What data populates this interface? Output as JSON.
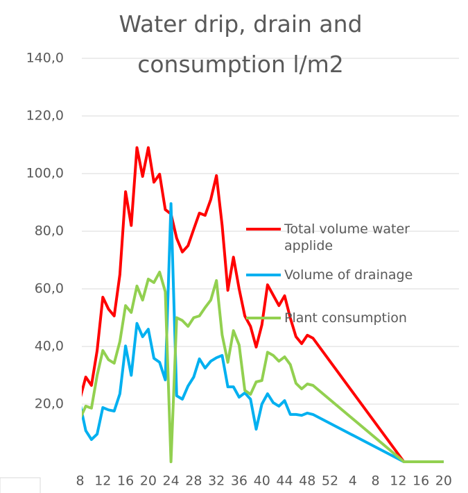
{
  "chart_data": {
    "type": "line",
    "title": "Water drip, drain and consumption l/m2",
    "x": [
      8,
      9,
      10,
      11,
      12,
      13,
      14,
      15,
      16,
      17,
      18,
      19,
      20,
      21,
      22,
      23,
      24,
      25,
      26,
      27,
      28,
      29,
      30,
      31,
      32,
      33,
      34,
      35,
      36,
      37,
      38,
      39,
      40,
      41,
      42,
      43,
      44,
      45,
      46,
      47,
      48,
      49,
      65,
      72
    ],
    "series": [
      {
        "name": "Total volume water applide",
        "color": "#ff0000",
        "values": [
          22,
          29.4,
          26.5,
          38.6,
          57.1,
          53,
          50.6,
          65,
          93.7,
          82,
          109,
          99,
          109,
          97,
          99.8,
          87.5,
          86,
          77.6,
          72.8,
          75,
          80.7,
          86.3,
          85.5,
          91,
          99.3,
          82,
          59.5,
          71,
          60,
          50.6,
          47,
          39.8,
          47.5,
          61.4,
          57.8,
          54.2,
          57.6,
          49.9,
          43.4,
          41,
          43.9,
          42.9,
          0,
          0
        ]
      },
      {
        "name": "Volume of drainage",
        "color": "#00b0f0",
        "values": [
          20,
          10.8,
          7.7,
          9.6,
          18.8,
          18,
          17.6,
          23.6,
          40.2,
          30,
          48,
          43.4,
          46,
          35.9,
          34.5,
          28.4,
          89.6,
          22.9,
          21.7,
          26.3,
          29.4,
          35.7,
          32.5,
          34.9,
          36.1,
          36.9,
          26,
          26,
          22.4,
          23.9,
          21.7,
          11.3,
          20,
          23.6,
          20.5,
          19.3,
          21.2,
          16.4,
          16.4,
          16.1,
          16.9,
          16.4,
          0,
          0
        ]
      },
      {
        "name": "Plant consumption",
        "color": "#92d050",
        "values": [
          15,
          19.3,
          18.6,
          30,
          38.6,
          35.4,
          34.2,
          41.7,
          54.2,
          51.8,
          61,
          56.1,
          63.4,
          62.2,
          65.8,
          59,
          0,
          50,
          49,
          47,
          50,
          50.6,
          53.5,
          56.1,
          62.9,
          44,
          34.5,
          45.5,
          40.5,
          24.8,
          23.4,
          27.7,
          28.2,
          38,
          36.9,
          34.9,
          36.4,
          33.7,
          27.2,
          25.3,
          27,
          26.5,
          0,
          0
        ]
      }
    ],
    "xlim": [
      8.3,
      74.7
    ],
    "xticks": [
      8,
      12,
      16,
      20,
      24,
      28,
      32,
      36,
      40,
      44,
      48,
      52,
      {
        "value": 56,
        "label": "4"
      },
      {
        "value": 60,
        "label": "8"
      },
      {
        "value": 64,
        "label": "12"
      },
      {
        "value": 68,
        "label": "16"
      },
      {
        "value": 72,
        "label": "20"
      }
    ],
    "ylim": [
      0,
      140
    ],
    "yticks": [
      {
        "value": 20,
        "label": "20,0"
      },
      {
        "value": 40,
        "label": "40,0"
      },
      {
        "value": 60,
        "label": "60,0"
      },
      {
        "value": 80,
        "label": "80,0"
      },
      {
        "value": 100,
        "label": "100,0"
      },
      {
        "value": 120,
        "label": "120,0"
      },
      {
        "value": 140,
        "label": "140,0"
      }
    ],
    "grid": true,
    "legend": "right"
  }
}
